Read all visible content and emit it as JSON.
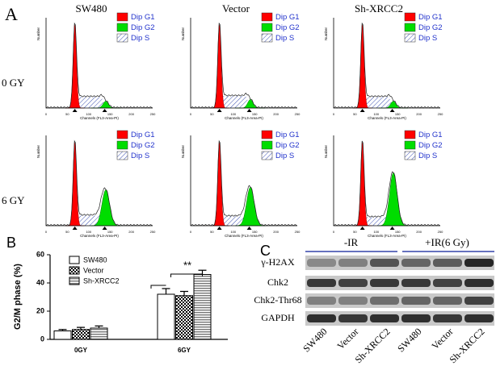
{
  "panel_a": {
    "label": "A",
    "columns": [
      "SW480",
      "Vector",
      "Sh-XRCC2"
    ],
    "rows": [
      "0 GY",
      "6 GY"
    ],
    "legend": [
      {
        "name": "Dip G1",
        "color": "#ff0000"
      },
      {
        "name": "Dip G2",
        "color": "#00dd00"
      },
      {
        "name": "Dip S",
        "color": "#3a4fb0"
      }
    ],
    "x_axis_label": "Channels (FL3-Area-PI)",
    "y_axis_label": "Number",
    "x_ticks": [
      0,
      50,
      100,
      150,
      200,
      250
    ]
  },
  "chart_data": {
    "type": "bar",
    "label": "B",
    "y_axis_label": "G2/M phase (%)",
    "categories": [
      "0GY",
      "6GY"
    ],
    "series": [
      {
        "name": "SW480",
        "color": "#ffffff",
        "pattern": "solid",
        "values": [
          6,
          32
        ],
        "errors": [
          1,
          4
        ]
      },
      {
        "name": "Vector",
        "color": "#000000",
        "pattern": "checker",
        "values": [
          7,
          31
        ],
        "errors": [
          1.5,
          3
        ]
      },
      {
        "name": "Sh-XRCC2",
        "color": "#777777",
        "pattern": "stripes",
        "values": [
          8,
          46
        ],
        "errors": [
          1.5,
          3
        ]
      }
    ],
    "ylim": [
      0,
      60
    ],
    "yticks": [
      0,
      20,
      40,
      60
    ],
    "annotation": "**"
  },
  "panel_c": {
    "label": "C",
    "groups": [
      "-IR",
      "+IR(6 Gy)"
    ],
    "rows": [
      "γ-H2AX",
      "Chk2",
      "Chk2-Thr68",
      "GAPDH"
    ],
    "lanes": [
      "SW480",
      "Vector",
      "Sh-XRCC2",
      "SW480",
      "Vector",
      "Sh-XRCC2"
    ]
  }
}
